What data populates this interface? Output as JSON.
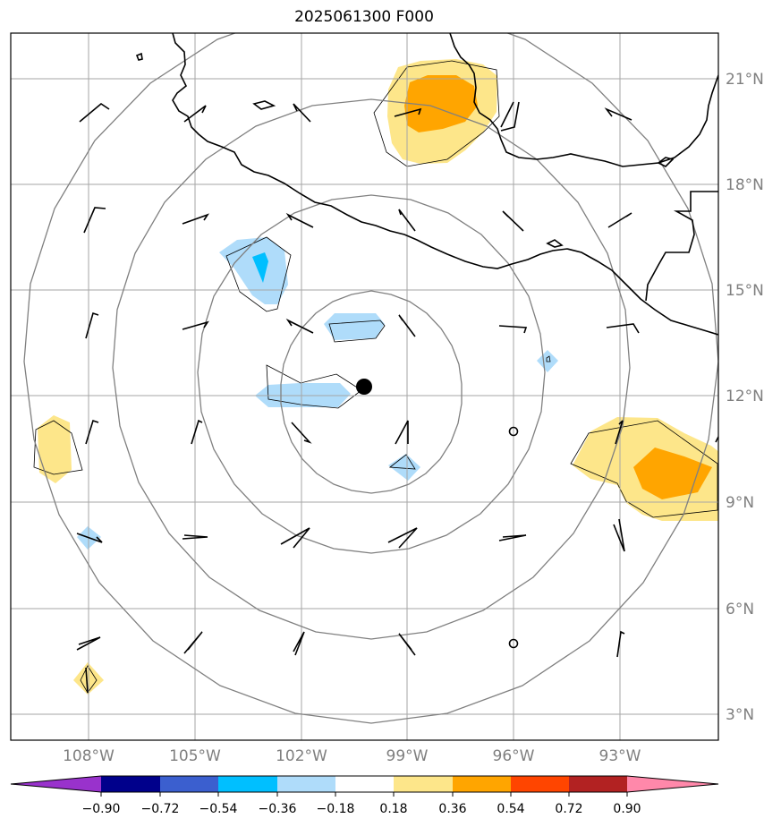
{
  "title": "2025061300 F000",
  "latitude_labels": [
    "21°N",
    "18°N",
    "15°N",
    "12°N",
    "9°N",
    "6°N",
    "3°N"
  ],
  "longitude_labels": [
    "108°W",
    "105°W",
    "102°W",
    "99°W",
    "96°W",
    "93°W"
  ],
  "colorbar": {
    "tick_labels": [
      "−0.90",
      "−0.72",
      "−0.54",
      "−0.36",
      "−0.18",
      "0.18",
      "0.36",
      "0.54",
      "0.72",
      "0.90"
    ],
    "colors": [
      "#9932cc",
      "#00008b",
      "#3b5fcf",
      "#00bfff",
      "#afdcfa",
      "#ffffff",
      "#fde68a",
      "#ffa500",
      "#ff4500",
      "#b22222",
      "#ff88aa"
    ]
  },
  "storm_center": {
    "lon": -100.2,
    "lat": 12.25
  },
  "range_rings_count": 4,
  "colors": {
    "grid": "#a6a6a6",
    "ring": "#808080",
    "coast": "#000000",
    "frame": "#000000"
  }
}
